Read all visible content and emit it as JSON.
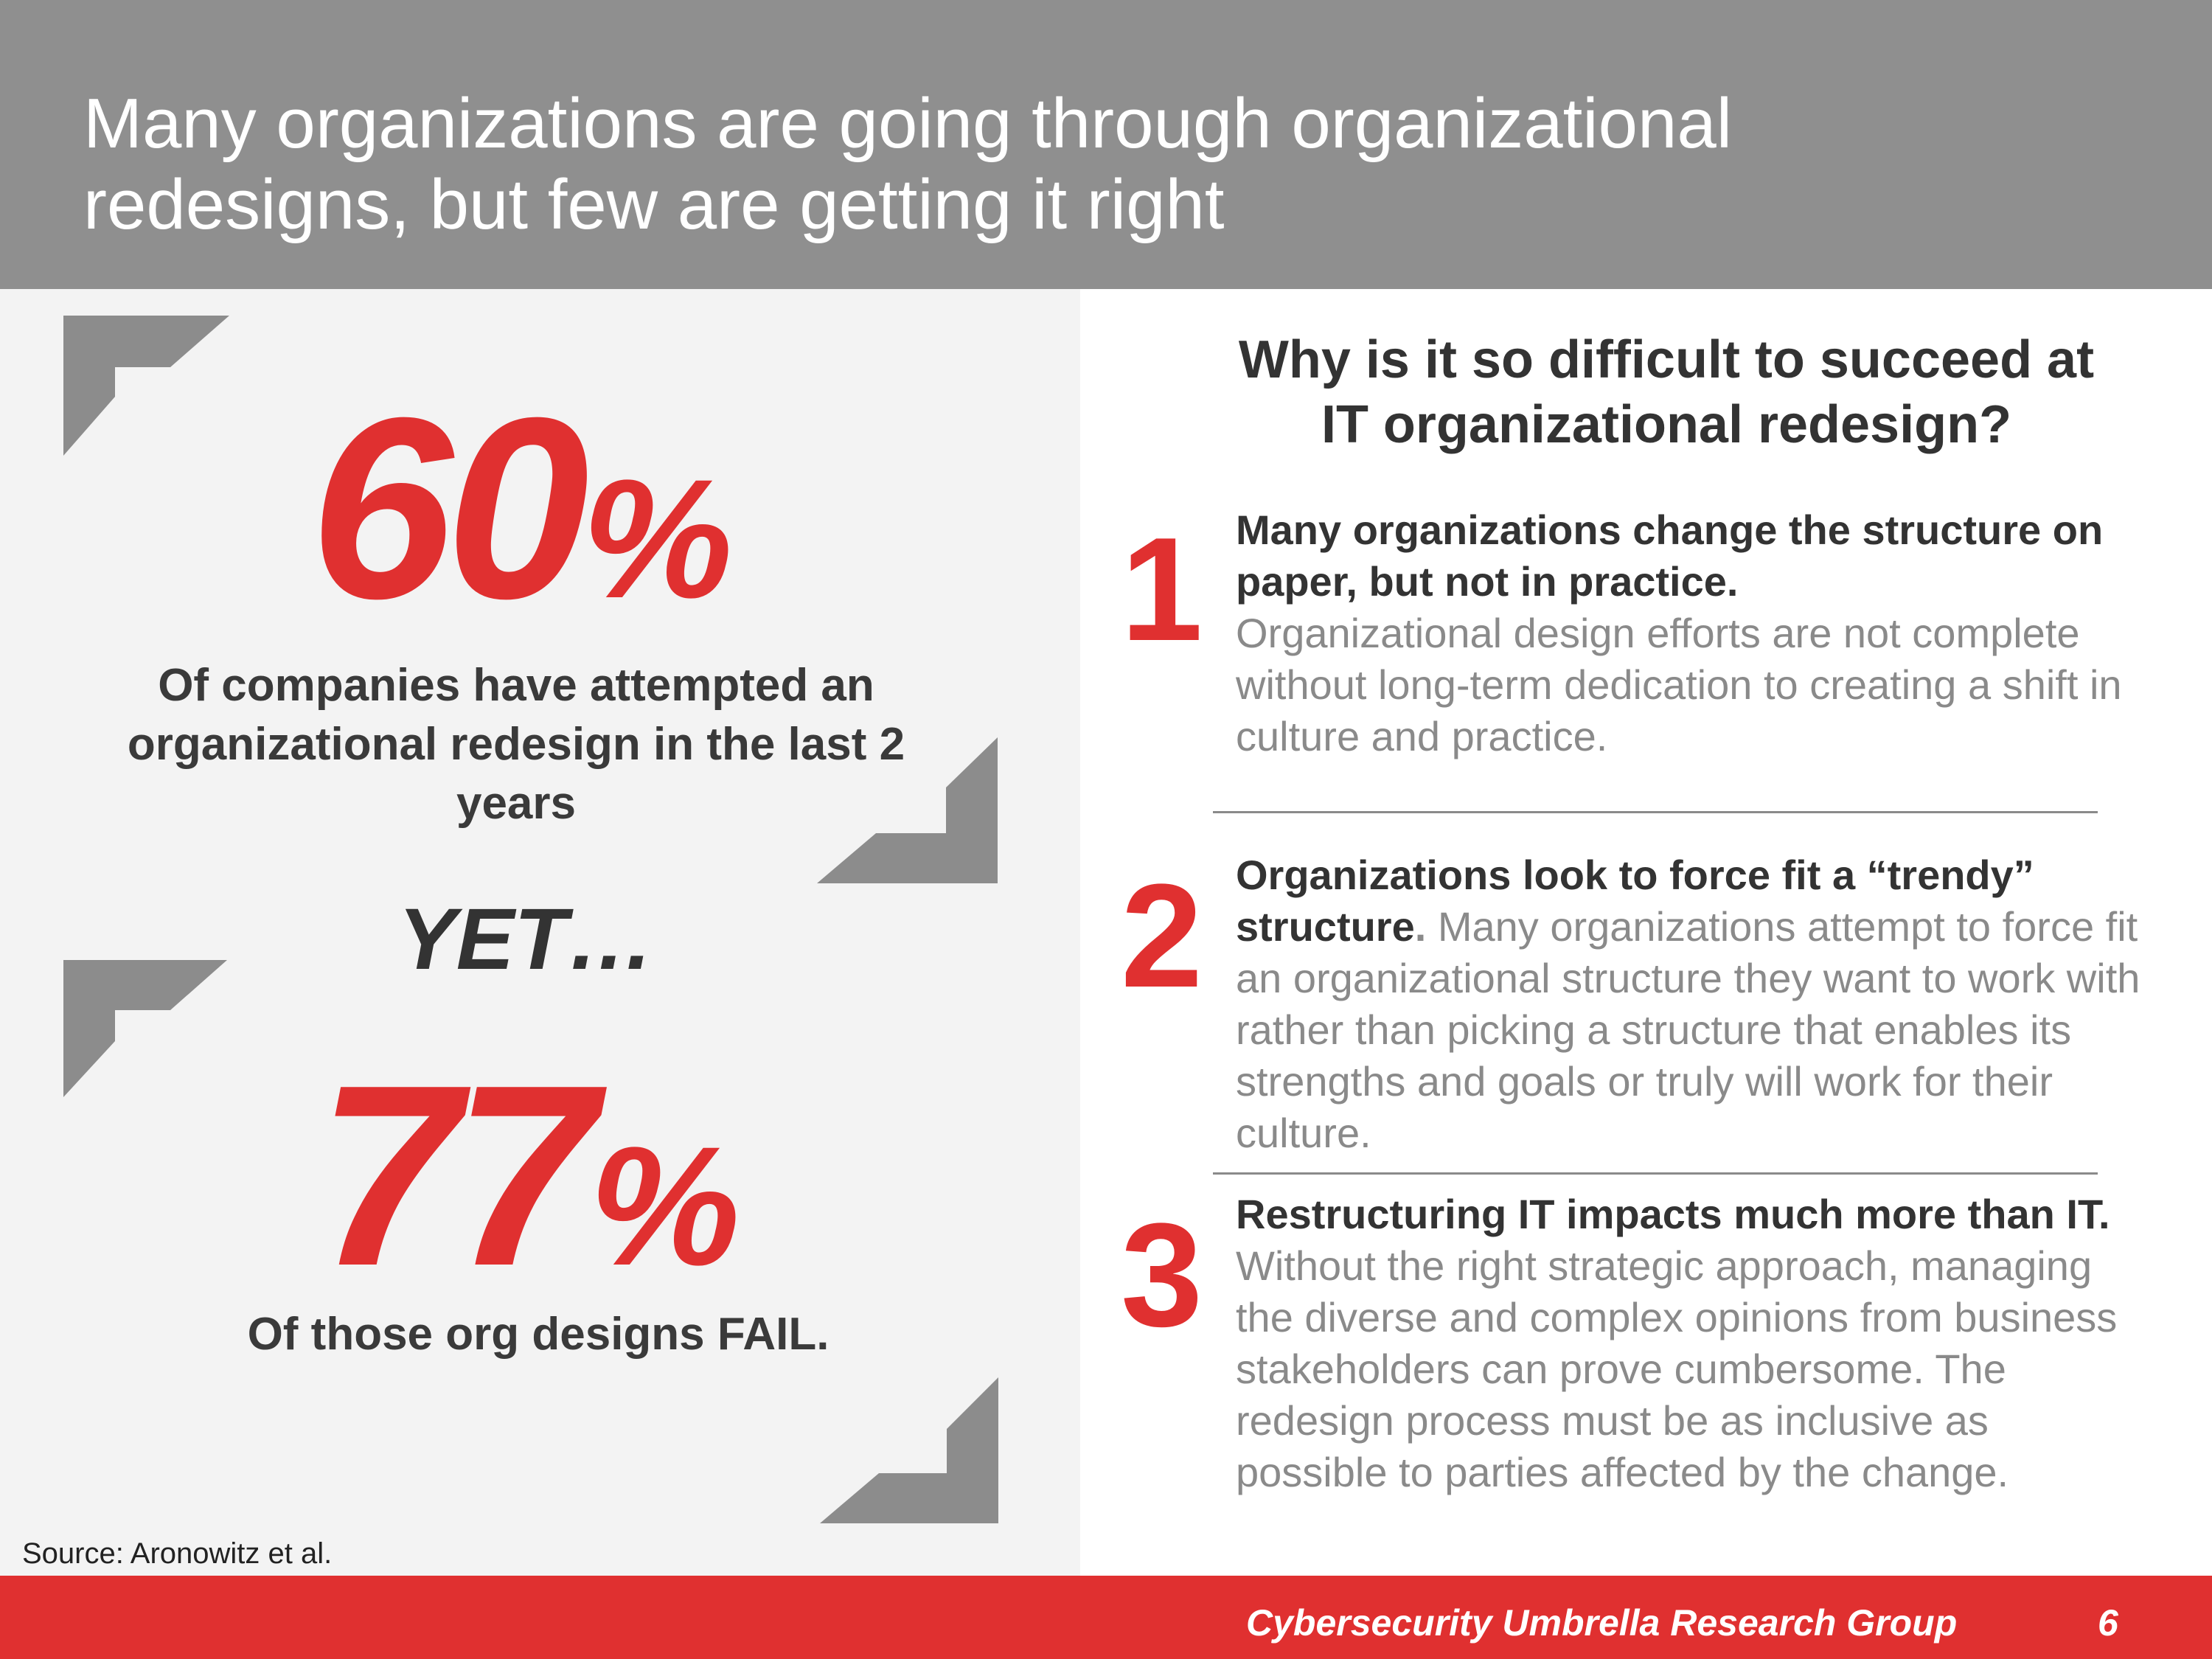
{
  "header": {
    "title_line1": "Many organizations are going through organizational",
    "title_line2": "redesigns, but few are getting it right"
  },
  "stats": {
    "first_number": "60",
    "first_percent": "%",
    "first_caption_line1": "Of companies have attempted an",
    "first_caption_line2": "organizational redesign in the last 2",
    "first_caption_line3": "years",
    "transition": "YET…",
    "second_number": "77",
    "second_percent": "%",
    "second_caption": "Of those org designs FAIL."
  },
  "source": "Source: Aronowitz et al.",
  "right": {
    "heading_line1": "Why is it so difficult to succeed at",
    "heading_line2": "IT organizational redesign?",
    "reasons": [
      {
        "number": "1",
        "lead": "Many organizations change the structure on paper, but not in practice.",
        "lead_tail": "",
        "body": "Organizational design efforts are not complete without long-term dedication to creating a shift in culture and practice."
      },
      {
        "number": "2",
        "lead": "Organizations look to force fit a “trendy” structure",
        "lead_tail": ".",
        "body": " Many organizations attempt to force fit an organizational structure they want to work with rather than picking a structure that enables its strengths and goals or truly will work for their culture."
      },
      {
        "number": "3",
        "lead": "Restructuring IT impacts much more than IT.",
        "lead_tail": "",
        "body": " Without the right strategic approach, managing the diverse and complex opinions from business stakeholders can prove cumbersome. The redesign process must be as inclusive as possible to parties affected by the change."
      }
    ]
  },
  "footer": {
    "org": "Cybersecurity Umbrella Research Group",
    "page": "6"
  },
  "colors": {
    "accent_red": "#e03030",
    "header_gray": "#8f8f8f",
    "bracket_gray": "#8c8c8c"
  }
}
